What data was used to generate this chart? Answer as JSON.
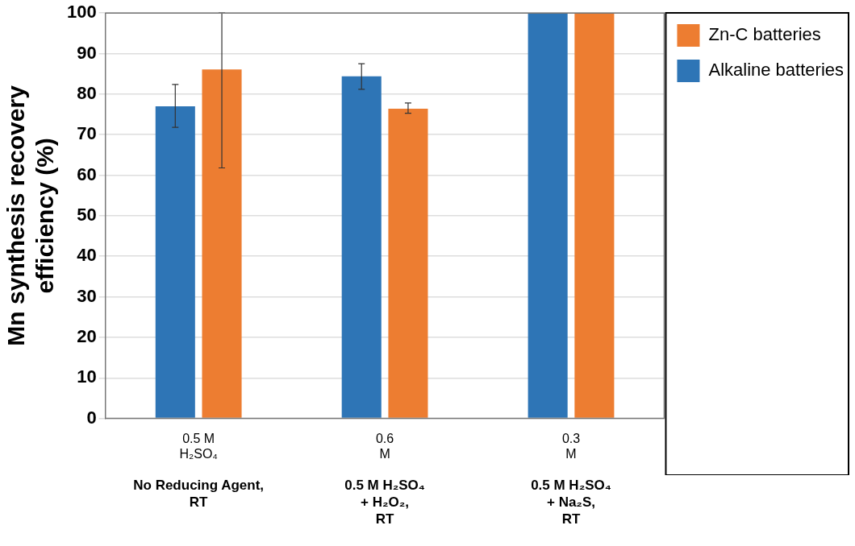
{
  "chart_data": {
    "type": "bar",
    "ylabel": "Mn synthesis recovery\nefficiency (%)",
    "categories": [
      "0.5 M\nH₂SO₄",
      "0.6\nM",
      "0.3\nM"
    ],
    "series": [
      {
        "name": "Alkaline batteries",
        "color": "#2e75b6",
        "values": [
          77.0,
          84.4,
          100
        ],
        "errors": [
          [
            71.8,
            82.4
          ],
          [
            81.2,
            87.5
          ],
          null
        ]
      },
      {
        "name": "Zn-C batteries",
        "color": "#ed7d31",
        "values": [
          86.1,
          76.4,
          100
        ],
        "errors": [
          [
            61.8,
            100
          ],
          [
            75.3,
            77.8
          ],
          null
        ]
      }
    ],
    "ylim": [
      0,
      100
    ],
    "yticks": [
      0,
      10,
      20,
      30,
      40,
      50,
      60,
      70,
      80,
      90,
      100
    ],
    "grid": "y",
    "legend": "top right",
    "annotations": [
      "No Reducing Agent,\nRT",
      "0.5 M H₂SO₄\n+ H₂O₂,\nRT",
      "0.5 M H₂SO₄\n+ Na₂S,\nRT"
    ]
  }
}
